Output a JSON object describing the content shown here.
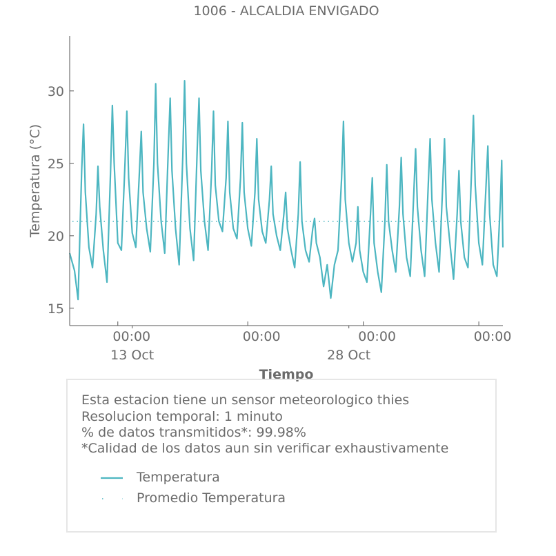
{
  "colors": {
    "series": "#4db6c1",
    "axis": "#555555",
    "text": "#6b6b6b",
    "box_border": "#e6e6e6"
  },
  "chart_data": {
    "type": "line",
    "title": "1006 - ALCALDIA ENVIGADO",
    "xlabel": "Tiempo",
    "ylabel": "Temperatura (°C)",
    "y_ticks": [
      15,
      20,
      25,
      30
    ],
    "ylim": [
      13.8,
      33.8
    ],
    "x_tick_labels": [
      "00:00",
      "00:00",
      "00:00",
      "00:00"
    ],
    "x_date_labels": [
      "13 Oct",
      "28 Oct"
    ],
    "xlim": [
      "2018-10-08T16:00",
      "2018-11-07T16:00"
    ],
    "x_ticks": [
      "2018-10-12T00:00",
      "2018-10-21T00:00",
      "2018-10-29T00:00",
      "2018-11-06T00:00"
    ],
    "x_date_ticks": [
      "2018-10-13T00:00",
      "2018-10-28T00:00"
    ],
    "average": 21.0,
    "grid": false,
    "legend_position": "below-chart",
    "series": [
      {
        "name": "Temperatura",
        "points": [
          [
            "2018-10-08T16:00",
            18.8
          ],
          [
            "2018-10-09T00:00",
            17.6
          ],
          [
            "2018-10-09T06:00",
            15.6
          ],
          [
            "2018-10-09T12:00",
            24.5
          ],
          [
            "2018-10-09T15:00",
            27.7
          ],
          [
            "2018-10-09T18:00",
            23.0
          ],
          [
            "2018-10-10T00:00",
            19.2
          ],
          [
            "2018-10-10T06:00",
            17.8
          ],
          [
            "2018-10-10T12:00",
            21.5
          ],
          [
            "2018-10-10T15:00",
            24.8
          ],
          [
            "2018-10-10T18:00",
            22.0
          ],
          [
            "2018-10-11T00:00",
            19.0
          ],
          [
            "2018-10-11T06:00",
            16.8
          ],
          [
            "2018-10-11T12:00",
            24.5
          ],
          [
            "2018-10-11T15:00",
            29.0
          ],
          [
            "2018-10-11T18:00",
            25.0
          ],
          [
            "2018-10-12T00:00",
            19.5
          ],
          [
            "2018-10-12T06:00",
            19.0
          ],
          [
            "2018-10-12T12:00",
            25.0
          ],
          [
            "2018-10-12T15:00",
            28.6
          ],
          [
            "2018-10-12T18:00",
            24.0
          ],
          [
            "2018-10-13T00:00",
            20.2
          ],
          [
            "2018-10-13T06:00",
            19.2
          ],
          [
            "2018-10-13T12:00",
            24.5
          ],
          [
            "2018-10-13T15:00",
            27.2
          ],
          [
            "2018-10-13T18:00",
            23.0
          ],
          [
            "2018-10-14T00:00",
            20.5
          ],
          [
            "2018-10-14T06:00",
            18.9
          ],
          [
            "2018-10-14T12:00",
            25.0
          ],
          [
            "2018-10-14T15:00",
            30.5
          ],
          [
            "2018-10-14T18:00",
            25.0
          ],
          [
            "2018-10-15T00:00",
            21.0
          ],
          [
            "2018-10-15T06:00",
            18.8
          ],
          [
            "2018-10-15T12:00",
            26.0
          ],
          [
            "2018-10-15T15:00",
            29.5
          ],
          [
            "2018-10-15T18:00",
            24.5
          ],
          [
            "2018-10-16T00:00",
            20.5
          ],
          [
            "2018-10-16T06:00",
            18.0
          ],
          [
            "2018-10-16T12:00",
            25.5
          ],
          [
            "2018-10-16T15:00",
            30.7
          ],
          [
            "2018-10-16T18:00",
            25.0
          ],
          [
            "2018-10-17T00:00",
            20.5
          ],
          [
            "2018-10-17T06:00",
            18.3
          ],
          [
            "2018-10-17T12:00",
            26.0
          ],
          [
            "2018-10-17T15:00",
            29.5
          ],
          [
            "2018-10-17T18:00",
            24.5
          ],
          [
            "2018-10-18T00:00",
            21.0
          ],
          [
            "2018-10-18T06:00",
            19.0
          ],
          [
            "2018-10-18T12:00",
            24.5
          ],
          [
            "2018-10-18T15:00",
            28.6
          ],
          [
            "2018-10-18T18:00",
            23.5
          ],
          [
            "2018-10-19T00:00",
            21.0
          ],
          [
            "2018-10-19T06:00",
            20.3
          ],
          [
            "2018-10-19T12:00",
            24.0
          ],
          [
            "2018-10-19T15:00",
            27.9
          ],
          [
            "2018-10-19T18:00",
            23.0
          ],
          [
            "2018-10-20T00:00",
            20.5
          ],
          [
            "2018-10-20T06:00",
            19.8
          ],
          [
            "2018-10-20T12:00",
            24.0
          ],
          [
            "2018-10-20T15:00",
            27.8
          ],
          [
            "2018-10-20T18:00",
            23.0
          ],
          [
            "2018-10-21T00:00",
            20.5
          ],
          [
            "2018-10-21T06:00",
            19.3
          ],
          [
            "2018-10-21T12:00",
            23.0
          ],
          [
            "2018-10-21T15:00",
            26.7
          ],
          [
            "2018-10-21T18:00",
            22.5
          ],
          [
            "2018-10-22T00:00",
            20.3
          ],
          [
            "2018-10-22T06:00",
            19.5
          ],
          [
            "2018-10-22T12:00",
            22.5
          ],
          [
            "2018-10-22T15:00",
            24.8
          ],
          [
            "2018-10-22T18:00",
            21.5
          ],
          [
            "2018-10-23T00:00",
            20.0
          ],
          [
            "2018-10-23T06:00",
            19.0
          ],
          [
            "2018-10-23T12:00",
            21.5
          ],
          [
            "2018-10-23T15:00",
            23.0
          ],
          [
            "2018-10-23T18:00",
            20.5
          ],
          [
            "2018-10-24T00:00",
            19.0
          ],
          [
            "2018-10-24T06:00",
            17.8
          ],
          [
            "2018-10-24T12:00",
            21.5
          ],
          [
            "2018-10-24T15:00",
            25.1
          ],
          [
            "2018-10-24T18:00",
            21.0
          ],
          [
            "2018-10-25T00:00",
            19.0
          ],
          [
            "2018-10-25T06:00",
            18.2
          ],
          [
            "2018-10-25T12:00",
            20.5
          ],
          [
            "2018-10-25T15:00",
            21.2
          ],
          [
            "2018-10-25T18:00",
            19.5
          ],
          [
            "2018-10-26T00:00",
            18.5
          ],
          [
            "2018-10-26T06:00",
            16.5
          ],
          [
            "2018-10-26T12:00",
            18.0
          ],
          [
            "2018-10-26T18:00",
            15.7
          ],
          [
            "2018-10-27T00:00",
            18.0
          ],
          [
            "2018-10-27T06:00",
            19.0
          ],
          [
            "2018-10-27T12:00",
            24.0
          ],
          [
            "2018-10-27T15:00",
            27.9
          ],
          [
            "2018-10-27T18:00",
            22.5
          ],
          [
            "2018-10-28T00:00",
            19.5
          ],
          [
            "2018-10-28T06:00",
            18.2
          ],
          [
            "2018-10-28T12:00",
            19.5
          ],
          [
            "2018-10-28T15:00",
            22.0
          ],
          [
            "2018-10-28T18:00",
            19.0
          ],
          [
            "2018-10-29T00:00",
            17.5
          ],
          [
            "2018-10-29T06:00",
            16.8
          ],
          [
            "2018-10-29T12:00",
            21.5
          ],
          [
            "2018-10-29T15:00",
            24.0
          ],
          [
            "2018-10-29T18:00",
            19.5
          ],
          [
            "2018-10-30T00:00",
            17.5
          ],
          [
            "2018-10-30T06:00",
            16.1
          ],
          [
            "2018-10-30T12:00",
            21.0
          ],
          [
            "2018-10-30T15:00",
            24.9
          ],
          [
            "2018-10-30T18:00",
            21.0
          ],
          [
            "2018-10-31T00:00",
            19.0
          ],
          [
            "2018-10-31T06:00",
            17.5
          ],
          [
            "2018-10-31T12:00",
            22.0
          ],
          [
            "2018-10-31T15:00",
            25.4
          ],
          [
            "2018-10-31T18:00",
            21.5
          ],
          [
            "2018-11-01T00:00",
            18.5
          ],
          [
            "2018-11-01T06:00",
            17.2
          ],
          [
            "2018-11-01T12:00",
            23.0
          ],
          [
            "2018-11-01T15:00",
            26.0
          ],
          [
            "2018-11-01T18:00",
            22.0
          ],
          [
            "2018-11-02T00:00",
            19.0
          ],
          [
            "2018-11-02T06:00",
            17.2
          ],
          [
            "2018-11-02T12:00",
            23.5
          ],
          [
            "2018-11-02T15:00",
            26.7
          ],
          [
            "2018-11-02T18:00",
            22.5
          ],
          [
            "2018-11-03T00:00",
            19.5
          ],
          [
            "2018-11-03T06:00",
            17.5
          ],
          [
            "2018-11-03T12:00",
            23.5
          ],
          [
            "2018-11-03T15:00",
            26.7
          ],
          [
            "2018-11-03T18:00",
            22.0
          ],
          [
            "2018-11-04T00:00",
            19.5
          ],
          [
            "2018-11-04T06:00",
            17.0
          ],
          [
            "2018-11-04T12:00",
            21.5
          ],
          [
            "2018-11-04T15:00",
            24.5
          ],
          [
            "2018-11-04T18:00",
            21.0
          ],
          [
            "2018-11-05T00:00",
            18.5
          ],
          [
            "2018-11-05T06:00",
            17.8
          ],
          [
            "2018-11-05T12:00",
            24.5
          ],
          [
            "2018-11-05T15:00",
            28.3
          ],
          [
            "2018-11-05T18:00",
            23.5
          ],
          [
            "2018-11-06T00:00",
            19.5
          ],
          [
            "2018-11-06T06:00",
            18.0
          ],
          [
            "2018-11-06T12:00",
            23.5
          ],
          [
            "2018-11-06T15:00",
            26.2
          ],
          [
            "2018-11-06T18:00",
            21.5
          ],
          [
            "2018-11-07T00:00",
            18.0
          ],
          [
            "2018-11-07T06:00",
            17.2
          ],
          [
            "2018-11-07T12:00",
            22.5
          ],
          [
            "2018-11-07T14:00",
            25.2
          ],
          [
            "2018-11-07T16:00",
            19.2
          ]
        ]
      }
    ]
  },
  "info": {
    "line1": "Esta estacion tiene un sensor meteorologico thies",
    "line2": "Resolucion temporal: 1 minuto",
    "line3": "% de datos transmitidos*: 99.98%",
    "line4": "*Calidad de los datos aun sin verificar exhaustivamente"
  },
  "legend": {
    "items": [
      {
        "label": "Temperatura",
        "style": "solid"
      },
      {
        "label": "Promedio Temperatura",
        "style": "dotted"
      }
    ]
  }
}
